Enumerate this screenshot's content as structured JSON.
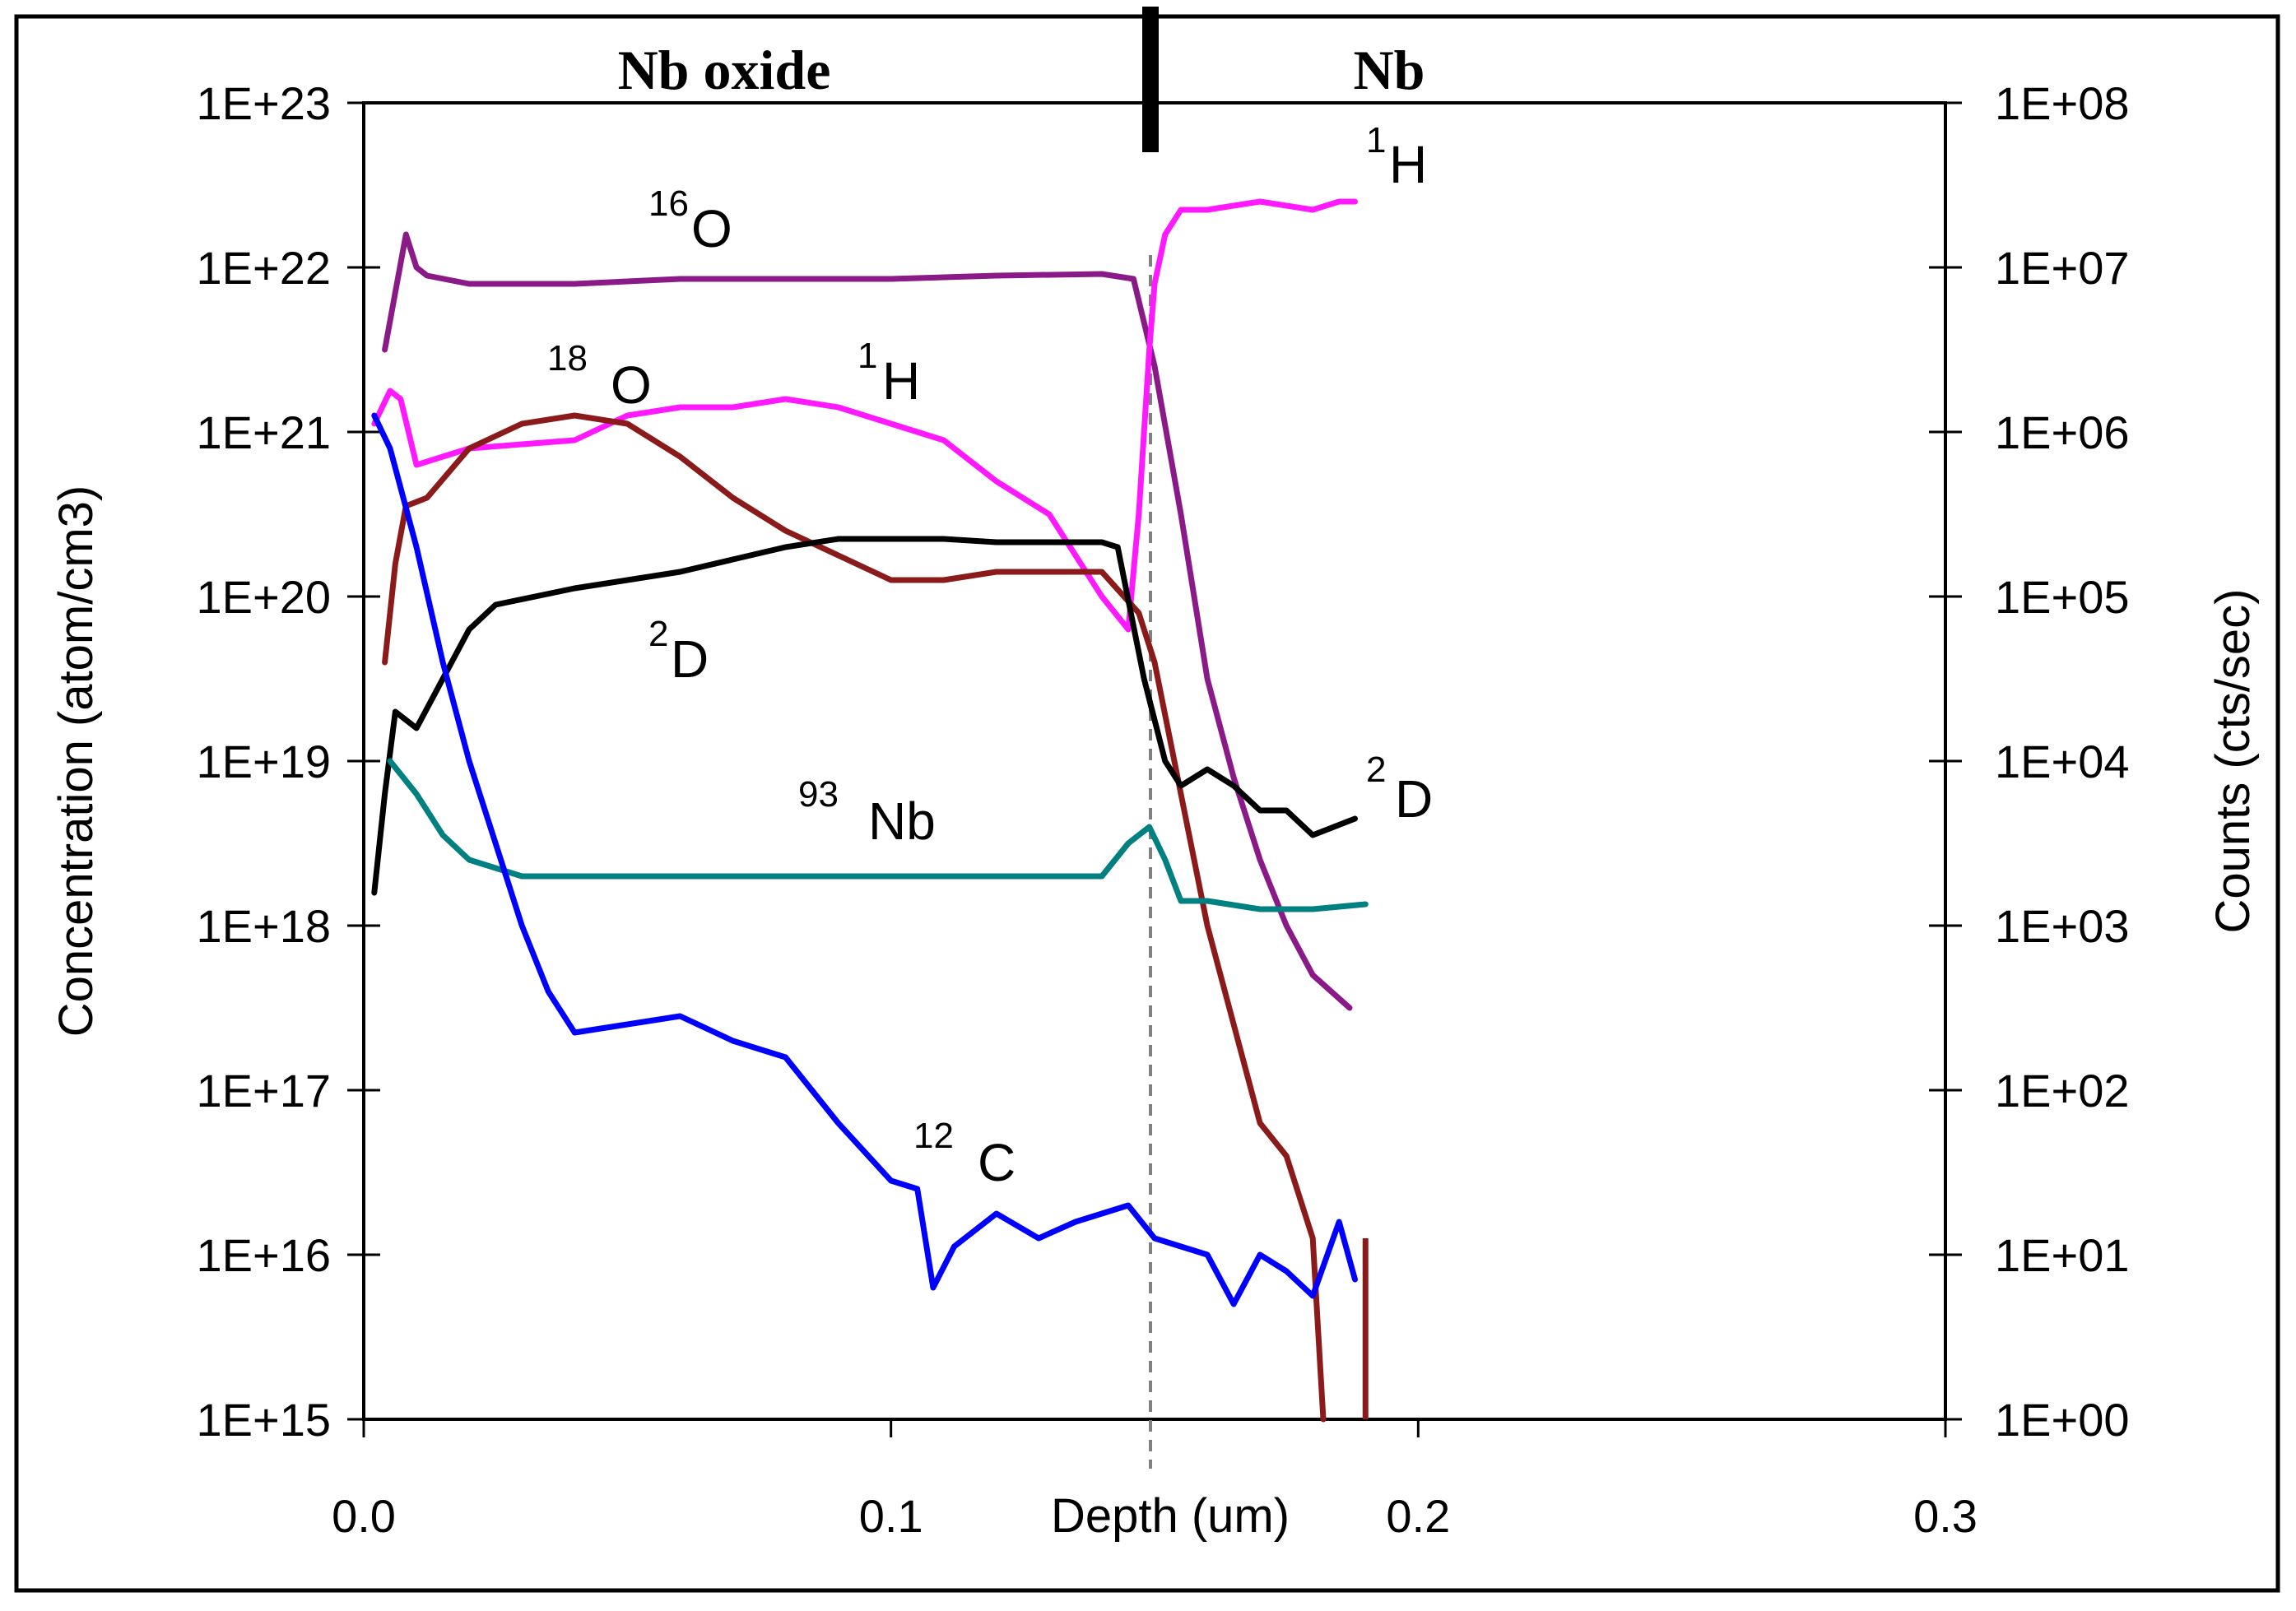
{
  "chart_data": {
    "type": "line",
    "xlabel": "Depth (um)",
    "ylabel": "Concentration (atom/cm3)",
    "y2label": "Counts (cts/sec)",
    "xlim": [
      0.0,
      0.3
    ],
    "x_ticks": [
      "0.0",
      "0.1",
      "0.2",
      "0.3"
    ],
    "ylim_log10": [
      15,
      23
    ],
    "y_ticks": [
      "1E+15",
      "1E+16",
      "1E+17",
      "1E+18",
      "1E+19",
      "1E+20",
      "1E+21",
      "1E+22",
      "1E+23"
    ],
    "y2_ticks": [
      "1E+00",
      "1E+01",
      "1E+02",
      "1E+03",
      "1E+04",
      "1E+05",
      "1E+06",
      "1E+07",
      "1E+08"
    ],
    "regions": {
      "left": "Nb oxide",
      "right": "Nb"
    },
    "interface_depth": 0.148,
    "series": [
      {
        "name": "16O",
        "label_sup": "16",
        "label_main": "O",
        "color": "#8B1A89",
        "points": [
          [
            0.004,
            21.5
          ],
          [
            0.006,
            21.85
          ],
          [
            0.008,
            22.2
          ],
          [
            0.01,
            22.0
          ],
          [
            0.012,
            21.95
          ],
          [
            0.02,
            21.9
          ],
          [
            0.04,
            21.9
          ],
          [
            0.06,
            21.93
          ],
          [
            0.08,
            21.93
          ],
          [
            0.1,
            21.93
          ],
          [
            0.12,
            21.95
          ],
          [
            0.14,
            21.96
          ],
          [
            0.146,
            21.93
          ],
          [
            0.15,
            21.4
          ],
          [
            0.155,
            20.5
          ],
          [
            0.16,
            19.5
          ],
          [
            0.165,
            18.9
          ],
          [
            0.17,
            18.4
          ],
          [
            0.175,
            18.0
          ],
          [
            0.18,
            17.7
          ],
          [
            0.187,
            17.5
          ]
        ]
      },
      {
        "name": "1H",
        "label_sup": "1",
        "label_main": "H",
        "color": "#FF19FF",
        "points": [
          [
            0.002,
            21.05
          ],
          [
            0.005,
            21.25
          ],
          [
            0.007,
            21.2
          ],
          [
            0.01,
            20.8
          ],
          [
            0.015,
            20.85
          ],
          [
            0.02,
            20.9
          ],
          [
            0.04,
            20.95
          ],
          [
            0.05,
            21.1
          ],
          [
            0.06,
            21.15
          ],
          [
            0.07,
            21.15
          ],
          [
            0.08,
            21.2
          ],
          [
            0.09,
            21.15
          ],
          [
            0.1,
            21.05
          ],
          [
            0.11,
            20.95
          ],
          [
            0.12,
            20.7
          ],
          [
            0.13,
            20.5
          ],
          [
            0.14,
            20.0
          ],
          [
            0.145,
            19.8
          ],
          [
            0.147,
            20.5
          ],
          [
            0.149,
            21.5
          ],
          [
            0.15,
            21.9
          ],
          [
            0.152,
            22.2
          ],
          [
            0.155,
            22.35
          ],
          [
            0.16,
            22.35
          ],
          [
            0.17,
            22.4
          ],
          [
            0.18,
            22.35
          ],
          [
            0.185,
            22.4
          ],
          [
            0.188,
            22.4
          ]
        ]
      },
      {
        "name": "18O",
        "label_sup": "18",
        "label_main": "O",
        "color": "#8B1A1A",
        "points": [
          [
            0.004,
            19.6
          ],
          [
            0.006,
            20.2
          ],
          [
            0.008,
            20.55
          ],
          [
            0.012,
            20.6
          ],
          [
            0.02,
            20.9
          ],
          [
            0.03,
            21.05
          ],
          [
            0.04,
            21.1
          ],
          [
            0.05,
            21.05
          ],
          [
            0.06,
            20.85
          ],
          [
            0.07,
            20.6
          ],
          [
            0.08,
            20.4
          ],
          [
            0.09,
            20.25
          ],
          [
            0.1,
            20.1
          ],
          [
            0.11,
            20.1
          ],
          [
            0.12,
            20.15
          ],
          [
            0.13,
            20.15
          ],
          [
            0.14,
            20.15
          ],
          [
            0.147,
            19.9
          ],
          [
            0.15,
            19.6
          ],
          [
            0.155,
            18.8
          ],
          [
            0.16,
            18.0
          ],
          [
            0.165,
            17.4
          ],
          [
            0.17,
            16.8
          ],
          [
            0.175,
            16.6
          ],
          [
            0.18,
            16.1
          ],
          [
            0.182,
            15.0
          ]
        ]
      },
      {
        "name": "2D",
        "label_sup": "2",
        "label_main": "D",
        "color": "#000000",
        "points": [
          [
            0.002,
            18.2
          ],
          [
            0.004,
            18.8
          ],
          [
            0.006,
            19.3
          ],
          [
            0.01,
            19.2
          ],
          [
            0.015,
            19.5
          ],
          [
            0.02,
            19.8
          ],
          [
            0.025,
            19.95
          ],
          [
            0.04,
            20.05
          ],
          [
            0.06,
            20.15
          ],
          [
            0.08,
            20.3
          ],
          [
            0.09,
            20.35
          ],
          [
            0.1,
            20.35
          ],
          [
            0.11,
            20.35
          ],
          [
            0.12,
            20.33
          ],
          [
            0.13,
            20.33
          ],
          [
            0.14,
            20.33
          ],
          [
            0.143,
            20.3
          ],
          [
            0.148,
            19.5
          ],
          [
            0.152,
            19.0
          ],
          [
            0.155,
            18.85
          ],
          [
            0.16,
            18.95
          ],
          [
            0.165,
            18.85
          ],
          [
            0.17,
            18.7
          ],
          [
            0.175,
            18.7
          ],
          [
            0.18,
            18.55
          ],
          [
            0.188,
            18.65
          ]
        ]
      },
      {
        "name": "93Nb",
        "label_sup": "93",
        "label_main": "Nb",
        "color": "#008080",
        "points": [
          [
            0.005,
            19.0
          ],
          [
            0.01,
            18.8
          ],
          [
            0.015,
            18.55
          ],
          [
            0.02,
            18.4
          ],
          [
            0.03,
            18.3
          ],
          [
            0.05,
            18.3
          ],
          [
            0.07,
            18.3
          ],
          [
            0.1,
            18.3
          ],
          [
            0.12,
            18.3
          ],
          [
            0.135,
            18.3
          ],
          [
            0.14,
            18.3
          ],
          [
            0.145,
            18.5
          ],
          [
            0.149,
            18.6
          ],
          [
            0.152,
            18.4
          ],
          [
            0.155,
            18.15
          ],
          [
            0.16,
            18.15
          ],
          [
            0.17,
            18.1
          ],
          [
            0.18,
            18.1
          ],
          [
            0.19,
            18.13
          ]
        ]
      },
      {
        "name": "12C",
        "label_sup": "12",
        "label_main": "C",
        "color": "#0000FF",
        "points": [
          [
            0.002,
            21.1
          ],
          [
            0.005,
            20.9
          ],
          [
            0.01,
            20.3
          ],
          [
            0.015,
            19.6
          ],
          [
            0.02,
            19.0
          ],
          [
            0.025,
            18.5
          ],
          [
            0.03,
            18.0
          ],
          [
            0.035,
            17.6
          ],
          [
            0.04,
            17.35
          ],
          [
            0.05,
            17.4
          ],
          [
            0.06,
            17.45
          ],
          [
            0.07,
            17.3
          ],
          [
            0.08,
            17.2
          ],
          [
            0.09,
            16.8
          ],
          [
            0.1,
            16.45
          ],
          [
            0.105,
            16.4
          ],
          [
            0.108,
            15.8
          ],
          [
            0.112,
            16.05
          ],
          [
            0.12,
            16.25
          ],
          [
            0.128,
            16.1
          ],
          [
            0.135,
            16.2
          ],
          [
            0.145,
            16.3
          ],
          [
            0.15,
            16.1
          ],
          [
            0.155,
            16.05
          ],
          [
            0.16,
            16.0
          ],
          [
            0.165,
            15.7
          ],
          [
            0.17,
            16.0
          ],
          [
            0.175,
            15.9
          ],
          [
            0.18,
            15.75
          ],
          [
            0.185,
            16.2
          ],
          [
            0.188,
            15.85
          ]
        ]
      }
    ]
  }
}
